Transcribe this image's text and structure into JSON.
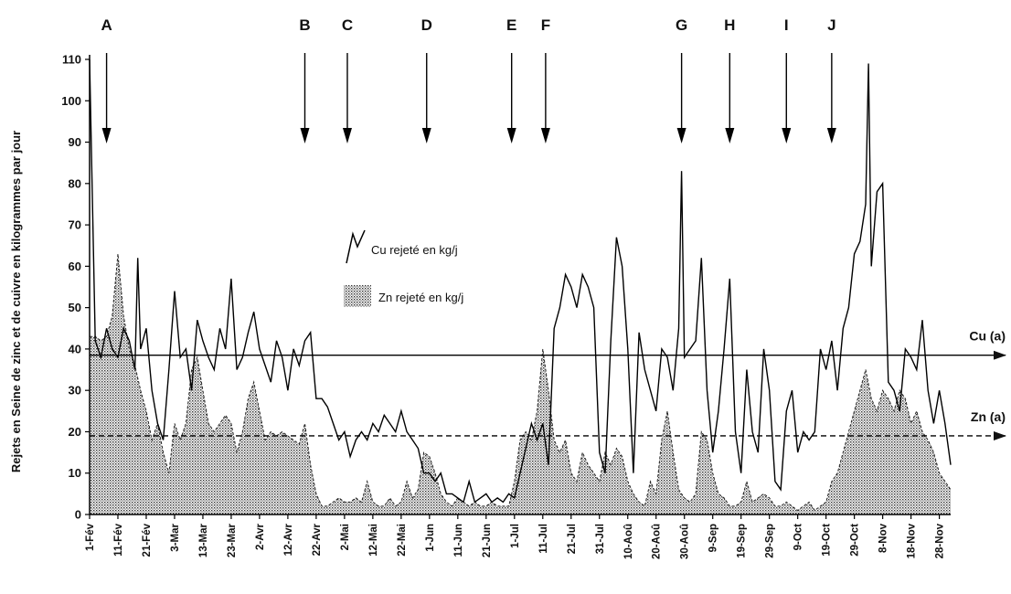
{
  "chart_data": {
    "type": "area",
    "ylabel": "Rejets en Seine de zinc et de cuivre en kilogrammes par jour",
    "ylim": [
      0,
      110
    ],
    "yticks": [
      0,
      10,
      20,
      30,
      40,
      50,
      60,
      70,
      80,
      90,
      100,
      110
    ],
    "x_tick_labels": [
      "1-Fév",
      "11-Fév",
      "21-Fév",
      "3-Mar",
      "13-Mar",
      "23-Mar",
      "2-Avr",
      "12-Avr",
      "22-Avr",
      "2-Mai",
      "12-Mai",
      "22-Mai",
      "1-Jun",
      "11-Jun",
      "21-Jun",
      "1-Jul",
      "11-Jul",
      "21-Jul",
      "31-Jul",
      "10-Aoû",
      "20-Aoû",
      "30-Aoû",
      "9-Sep",
      "19-Sep",
      "29-Sep",
      "9-Oct",
      "19-Oct",
      "29-Oct",
      "8-Nov",
      "18-Nov",
      "28-Nov"
    ],
    "x_tick_days": [
      0,
      10,
      20,
      30,
      40,
      50,
      60,
      70,
      80,
      90,
      100,
      110,
      120,
      130,
      140,
      150,
      160,
      170,
      180,
      190,
      200,
      210,
      220,
      230,
      240,
      250,
      260,
      270,
      280,
      290,
      300
    ],
    "xlim_days": [
      0,
      304
    ],
    "events": [
      {
        "label": "A",
        "day": 6
      },
      {
        "label": "B",
        "day": 76
      },
      {
        "label": "C",
        "day": 91
      },
      {
        "label": "D",
        "day": 119
      },
      {
        "label": "E",
        "day": 149
      },
      {
        "label": "F",
        "day": 161
      },
      {
        "label": "G",
        "day": 209
      },
      {
        "label": "H",
        "day": 226
      },
      {
        "label": "I",
        "day": 246
      },
      {
        "label": "J",
        "day": 262
      }
    ],
    "thresholds": [
      {
        "label": "Cu (a)",
        "value": 38.5,
        "style": "solid"
      },
      {
        "label": "Zn (a)",
        "value": 19,
        "style": "dashed"
      }
    ],
    "legend": {
      "cu": "Cu rejeté en kg/j",
      "zn": "Zn rejeté en kg/j"
    },
    "series": [
      {
        "name": "Cu rejeté en kg/j",
        "style": "line",
        "x": [
          0,
          2,
          4,
          6,
          8,
          10,
          12,
          14,
          16,
          17,
          18,
          20,
          22,
          24,
          26,
          28,
          30,
          32,
          34,
          36,
          38,
          40,
          42,
          44,
          46,
          48,
          50,
          52,
          54,
          56,
          58,
          60,
          62,
          64,
          66,
          68,
          70,
          72,
          74,
          76,
          78,
          80,
          82,
          84,
          86,
          88,
          90,
          92,
          94,
          96,
          98,
          100,
          102,
          104,
          106,
          108,
          110,
          112,
          114,
          116,
          118,
          120,
          122,
          124,
          126,
          128,
          130,
          132,
          134,
          136,
          138,
          140,
          142,
          144,
          146,
          148,
          150,
          152,
          154,
          156,
          158,
          160,
          162,
          164,
          166,
          168,
          170,
          172,
          174,
          176,
          178,
          180,
          182,
          184,
          186,
          188,
          190,
          192,
          194,
          196,
          198,
          200,
          202,
          204,
          206,
          208,
          209,
          210,
          212,
          214,
          216,
          218,
          220,
          222,
          224,
          226,
          228,
          230,
          232,
          234,
          236,
          238,
          240,
          242,
          244,
          246,
          248,
          250,
          252,
          254,
          256,
          258,
          260,
          262,
          264,
          266,
          268,
          270,
          272,
          274,
          275,
          276,
          278,
          280,
          282,
          284,
          286,
          288,
          290,
          292,
          294,
          296,
          298,
          300,
          302,
          304
        ],
        "y": [
          110,
          42,
          38,
          45,
          40,
          38,
          45,
          42,
          35,
          62,
          40,
          45,
          30,
          22,
          18,
          35,
          54,
          38,
          40,
          30,
          47,
          42,
          38,
          35,
          45,
          40,
          57,
          35,
          38,
          44,
          49,
          40,
          36,
          32,
          42,
          38,
          30,
          40,
          36,
          42,
          44,
          28,
          28,
          26,
          22,
          18,
          20,
          14,
          18,
          20,
          18,
          22,
          20,
          24,
          22,
          20,
          25,
          20,
          18,
          16,
          10,
          10,
          8,
          10,
          5,
          5,
          4,
          3,
          8,
          3,
          4,
          5,
          3,
          4,
          3,
          5,
          4,
          10,
          16,
          22,
          18,
          22,
          12,
          45,
          50,
          58,
          55,
          50,
          58,
          55,
          50,
          15,
          10,
          42,
          67,
          60,
          40,
          10,
          44,
          35,
          30,
          25,
          40,
          38,
          30,
          45,
          83,
          38,
          40,
          42,
          62,
          30,
          15,
          25,
          40,
          57,
          20,
          10,
          35,
          20,
          15,
          40,
          30,
          8,
          6,
          25,
          30,
          15,
          20,
          18,
          20,
          40,
          35,
          42,
          30,
          45,
          50,
          63,
          66,
          75,
          109,
          60,
          78,
          80,
          32,
          30,
          25,
          40,
          38,
          35,
          47,
          30,
          22,
          30,
          22,
          12
        ]
      },
      {
        "name": "Zn rejeté en kg/j",
        "style": "dotted-area",
        "x": [
          0,
          2,
          4,
          6,
          8,
          10,
          12,
          14,
          16,
          18,
          20,
          22,
          24,
          26,
          28,
          30,
          32,
          34,
          36,
          38,
          40,
          42,
          44,
          46,
          48,
          50,
          52,
          54,
          56,
          58,
          60,
          62,
          64,
          66,
          68,
          70,
          72,
          74,
          76,
          78,
          80,
          82,
          84,
          86,
          88,
          90,
          92,
          94,
          96,
          98,
          100,
          102,
          104,
          106,
          108,
          110,
          112,
          114,
          116,
          118,
          120,
          122,
          124,
          126,
          128,
          130,
          132,
          134,
          136,
          138,
          140,
          142,
          144,
          146,
          148,
          150,
          152,
          154,
          156,
          158,
          160,
          162,
          164,
          166,
          168,
          170,
          172,
          174,
          176,
          178,
          180,
          182,
          184,
          186,
          188,
          190,
          192,
          194,
          196,
          198,
          200,
          202,
          204,
          206,
          208,
          210,
          212,
          214,
          216,
          218,
          220,
          222,
          224,
          226,
          228,
          230,
          232,
          234,
          236,
          238,
          240,
          242,
          244,
          246,
          248,
          250,
          252,
          254,
          256,
          258,
          260,
          262,
          264,
          266,
          268,
          270,
          272,
          274,
          276,
          278,
          280,
          282,
          284,
          286,
          288,
          290,
          292,
          294,
          296,
          298,
          300,
          302,
          304
        ],
        "y": [
          43,
          43,
          42,
          43,
          48,
          63,
          48,
          40,
          36,
          30,
          25,
          18,
          22,
          15,
          10,
          22,
          18,
          22,
          35,
          38,
          30,
          22,
          20,
          22,
          24,
          22,
          15,
          20,
          28,
          32,
          25,
          18,
          20,
          19,
          20,
          19,
          18,
          17,
          22,
          12,
          5,
          2,
          2,
          3,
          4,
          3,
          3,
          4,
          3,
          8,
          3,
          2,
          2,
          4,
          2,
          3,
          8,
          4,
          6,
          15,
          14,
          10,
          5,
          3,
          2,
          4,
          3,
          2,
          3,
          2,
          2,
          3,
          2,
          2,
          2,
          8,
          18,
          20,
          18,
          25,
          40,
          30,
          18,
          15,
          18,
          10,
          8,
          15,
          12,
          10,
          8,
          15,
          12,
          16,
          14,
          8,
          5,
          3,
          2,
          8,
          5,
          18,
          25,
          15,
          6,
          4,
          3,
          5,
          20,
          18,
          10,
          5,
          4,
          2,
          2,
          3,
          8,
          3,
          4,
          5,
          4,
          2,
          2,
          3,
          2,
          1,
          2,
          3,
          1,
          2,
          3,
          8,
          10,
          15,
          20,
          25,
          30,
          35,
          28,
          25,
          30,
          28,
          25,
          30,
          28,
          22,
          25,
          20,
          18,
          15,
          10,
          8,
          6
        ]
      }
    ]
  }
}
